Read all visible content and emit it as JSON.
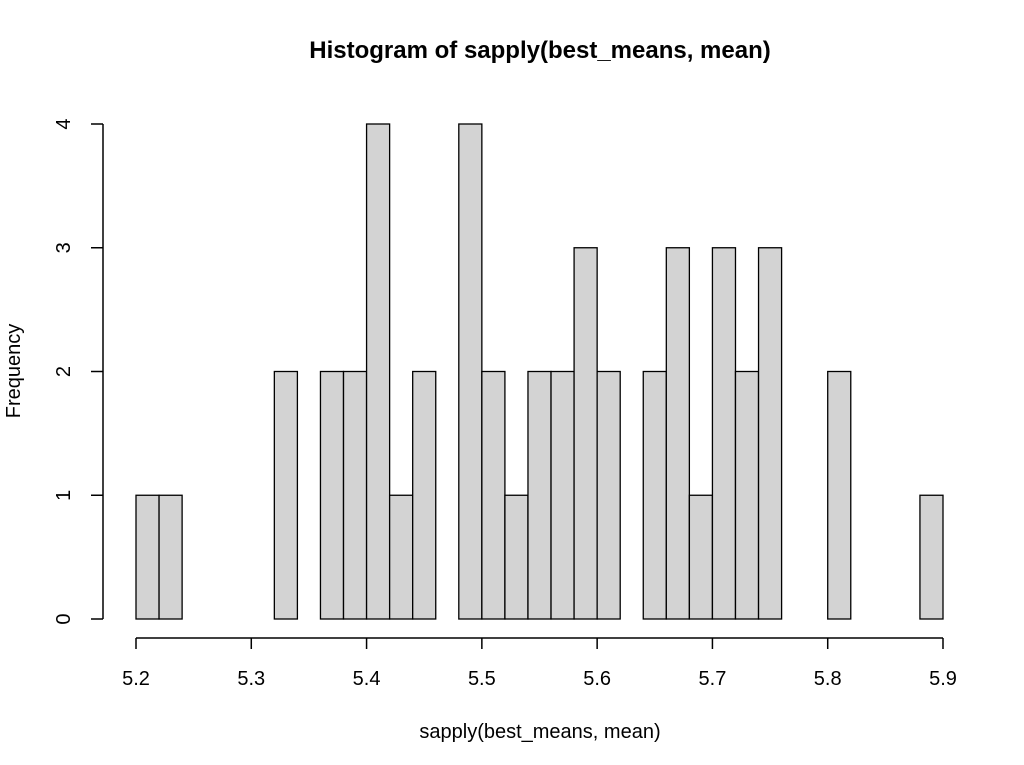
{
  "chart_data": {
    "type": "bar",
    "title": "Histogram of sapply(best_means, mean)",
    "xlabel": "sapply(best_means, mean)",
    "ylabel": "Frequency",
    "bin_width": 0.02,
    "bin_start": 5.2,
    "bins": [
      [
        5.2,
        5.22
      ],
      [
        5.22,
        5.24
      ],
      [
        5.24,
        5.26
      ],
      [
        5.26,
        5.28
      ],
      [
        5.28,
        5.3
      ],
      [
        5.3,
        5.32
      ],
      [
        5.32,
        5.34
      ],
      [
        5.34,
        5.36
      ],
      [
        5.36,
        5.38
      ],
      [
        5.38,
        5.4
      ],
      [
        5.4,
        5.42
      ],
      [
        5.42,
        5.44
      ],
      [
        5.44,
        5.46
      ],
      [
        5.46,
        5.48
      ],
      [
        5.48,
        5.5
      ],
      [
        5.5,
        5.52
      ],
      [
        5.52,
        5.54
      ],
      [
        5.54,
        5.56
      ],
      [
        5.56,
        5.58
      ],
      [
        5.58,
        5.6
      ],
      [
        5.6,
        5.62
      ],
      [
        5.62,
        5.64
      ],
      [
        5.64,
        5.66
      ],
      [
        5.66,
        5.68
      ],
      [
        5.68,
        5.7
      ],
      [
        5.7,
        5.72
      ],
      [
        5.72,
        5.74
      ],
      [
        5.74,
        5.76
      ],
      [
        5.76,
        5.78
      ],
      [
        5.78,
        5.8
      ],
      [
        5.8,
        5.82
      ],
      [
        5.82,
        5.84
      ],
      [
        5.84,
        5.86
      ],
      [
        5.86,
        5.88
      ],
      [
        5.88,
        5.9
      ]
    ],
    "values": [
      1,
      1,
      0,
      0,
      0,
      0,
      2,
      0,
      2,
      2,
      4,
      1,
      2,
      0,
      4,
      2,
      1,
      2,
      2,
      3,
      2,
      0,
      2,
      3,
      1,
      3,
      2,
      3,
      0,
      0,
      2,
      0,
      0,
      0,
      1
    ],
    "xlim": [
      5.2,
      5.9
    ],
    "ylim": [
      0,
      4
    ],
    "xticks": [
      "5.2",
      "5.3",
      "5.4",
      "5.5",
      "5.6",
      "5.7",
      "5.8",
      "5.9"
    ],
    "yticks": [
      "0",
      "1",
      "2",
      "3",
      "4"
    ],
    "grid": false,
    "bar_fill": "#d3d3d3",
    "bar_stroke": "#000000"
  }
}
